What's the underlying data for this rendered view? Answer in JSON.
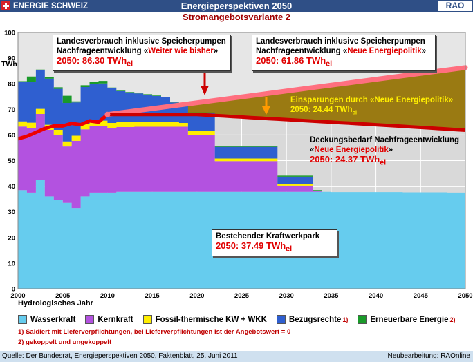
{
  "header": {
    "brand": "ENERGIE SCHWEIZ",
    "title": "Energieperspektiven 2050",
    "badge": "RAO",
    "subtitle": "Stromangebotsvariante 2"
  },
  "annotations": {
    "box_left_l1": "Landesverbrauch inklusive Speicherpumpen",
    "box_left_l2a": "Nachfrageentwicklung «",
    "box_left_l2b": "Weiter wie bisher",
    "box_left_l2c": "»",
    "box_left_value": "2050: 86.30 TWh",
    "box_right_l1": "Landesverbrauch inklusive Speicherpumpen",
    "box_right_l2a": "Nachfrageentwicklung «",
    "box_right_l2b": "Neue Energiepolitik",
    "box_right_l2c": "»",
    "box_right_value": "2050: 61.86 TWh",
    "savings_l1": "Einsparungen durch «Neue Energiepolitik»",
    "savings_l2": "2050: 24.44 TWh",
    "deck_l1": "Deckungsbedarf  Nachfrageentwicklung",
    "deck_l2a": "«",
    "deck_l2b": "Neue Energiepolitik",
    "deck_l2c": "»",
    "deck_value": "2050: 24.37 TWh",
    "park_l1": "Bestehender Kraftwerkpark",
    "park_value": "2050: 37.49 TWh",
    "unit_sub": "el"
  },
  "legend": {
    "hydro_label": "Hydrologisches Jahr",
    "items": [
      {
        "label": "Wasserkraft",
        "color": "#66ccee",
        "sup": ""
      },
      {
        "label": "Kernkraft",
        "color": "#b352e0",
        "sup": ""
      },
      {
        "label": "Fossil-thermische KW + WKK",
        "color": "#ffee00",
        "sup": ""
      },
      {
        "label": "Bezugsrechte",
        "color": "#2f5fd0",
        "sup": "1)"
      },
      {
        "label": "Erneuerbare Energie",
        "color": "#1a9a2a",
        "sup": "2)"
      }
    ],
    "note1": "1) Saldiert mit Lieferverpflichtungen, bei Lieferverpflichtungen ist der Angebotswert = 0",
    "note2": "2) gekoppelt und ungekoppelt"
  },
  "footer": {
    "source": "Quelle: Der Bundesrat, Energieperspektiven 2050, Faktenblatt, 25. Juni 2011",
    "credit": "Neubearbeitung: RAOnline"
  },
  "chart_data": {
    "type": "area",
    "ylabel": "TWh",
    "ylim": [
      0,
      100
    ],
    "xlim": [
      2000,
      2050
    ],
    "yticks": [
      0,
      10,
      20,
      30,
      40,
      50,
      60,
      70,
      80,
      90,
      100
    ],
    "xticks": [
      2000,
      2005,
      2010,
      2015,
      2020,
      2025,
      2030,
      2035,
      2040,
      2045,
      2050
    ],
    "grid": true,
    "years": [
      2000,
      2001,
      2002,
      2003,
      2004,
      2005,
      2006,
      2007,
      2008,
      2009,
      2010,
      2011,
      2012,
      2013,
      2014,
      2015,
      2016,
      2017,
      2018,
      2019,
      2020,
      2021,
      2022,
      2023,
      2024,
      2025,
      2026,
      2027,
      2028,
      2029,
      2030,
      2031,
      2032,
      2033,
      2034,
      2035,
      2036,
      2037,
      2038,
      2039,
      2040,
      2041,
      2042,
      2043,
      2044,
      2045,
      2046,
      2047,
      2048,
      2049,
      2050
    ],
    "series": [
      {
        "name": "Wasserkraft",
        "color": "#66ccee",
        "values": [
          38.5,
          37.5,
          42.5,
          36.0,
          34.5,
          33.5,
          31.5,
          36.0,
          37.5,
          37.5,
          37.5,
          37.8,
          37.8,
          37.8,
          37.8,
          37.8,
          37.8,
          37.8,
          37.8,
          37.8,
          37.8,
          37.8,
          37.8,
          37.8,
          37.8,
          37.8,
          37.8,
          37.8,
          37.8,
          37.8,
          37.8,
          37.8,
          37.8,
          37.8,
          37.8,
          37.7,
          37.7,
          37.7,
          37.7,
          37.7,
          37.7,
          37.7,
          37.7,
          37.6,
          37.6,
          37.6,
          37.6,
          37.6,
          37.5,
          37.5,
          37.49
        ]
      },
      {
        "name": "Kernkraft",
        "color": "#b352e0",
        "values": [
          24.8,
          25.3,
          25.7,
          26.0,
          25.5,
          22.0,
          26.2,
          26.2,
          26.0,
          26.1,
          25.2,
          25.3,
          25.3,
          25.4,
          25.4,
          25.4,
          25.4,
          25.4,
          25.4,
          22.2,
          22.2,
          22.2,
          12.0,
          12.0,
          12.0,
          12.0,
          12.0,
          12.0,
          12.0,
          2.4,
          2.4,
          2.4,
          2.4,
          0.3,
          0,
          0,
          0,
          0,
          0,
          0,
          0,
          0,
          0,
          0,
          0,
          0,
          0,
          0,
          0,
          0,
          0
        ]
      },
      {
        "name": "Fossil-thermische KW + WKK",
        "color": "#ffee00",
        "values": [
          2.0,
          2.0,
          2.0,
          2.0,
          2.0,
          2.0,
          2.0,
          2.0,
          2.0,
          2.0,
          2.0,
          2.0,
          2.0,
          2.0,
          2.0,
          2.0,
          2.0,
          2.0,
          1.5,
          1.5,
          1.5,
          1.5,
          1.0,
          1.0,
          1.0,
          1.0,
          1.0,
          1.0,
          1.0,
          0.5,
          0.5,
          0.5,
          0.5,
          0,
          0,
          0,
          0,
          0,
          0,
          0,
          0,
          0,
          0,
          0,
          0,
          0,
          0,
          0,
          0,
          0,
          0
        ]
      },
      {
        "name": "Bezugsrechte",
        "color": "#2f5fd0",
        "values": [
          15.5,
          16.0,
          15.0,
          18.0,
          16.0,
          15.0,
          13.0,
          14.5,
          14.5,
          14.5,
          13.5,
          12.0,
          11.5,
          11.0,
          10.5,
          10.0,
          9.5,
          7.5,
          7.0,
          7.0,
          7.0,
          7.0,
          4.5,
          4.5,
          4.5,
          4.5,
          4.5,
          4.5,
          4.5,
          3.0,
          3.0,
          3.0,
          3.0,
          0,
          0,
          0,
          0,
          0,
          0,
          0,
          0,
          0,
          0,
          0,
          0,
          0,
          0,
          0,
          0,
          0,
          0
        ]
      },
      {
        "name": "Erneuerbare Energie",
        "color": "#1a9a2a",
        "values": [
          0.2,
          2.0,
          0.3,
          0.6,
          0.6,
          2.8,
          0.4,
          0.7,
          0.6,
          1.0,
          0.3,
          0.2,
          0.2,
          0.2,
          0.2,
          0.2,
          0.2,
          0.2,
          0.3,
          0.3,
          0.3,
          0.3,
          0.4,
          0.4,
          0.4,
          0.4,
          0.4,
          0.4,
          0.4,
          0.4,
          0.4,
          0.4,
          0.4,
          0.4,
          0,
          0,
          0,
          0,
          0,
          0,
          0,
          0,
          0,
          0,
          0,
          0,
          0,
          0,
          0,
          0,
          0
        ]
      }
    ],
    "consumption_historic": {
      "x": [
        2000,
        2001,
        2002,
        2003,
        2004,
        2005,
        2006,
        2007,
        2008,
        2009,
        2010
      ],
      "y": [
        58.5,
        59.5,
        61.0,
        62.5,
        63.5,
        63.5,
        64.5,
        64.0,
        65.5,
        65.0,
        68.0
      ]
    },
    "consumption_weiter_wie_bisher": {
      "x": [
        2010,
        2050
      ],
      "y": [
        68.0,
        86.3
      ]
    },
    "consumption_neue_energiepolitik": {
      "x": [
        2010,
        2020,
        2030,
        2040,
        2050
      ],
      "y": [
        68.0,
        68.0,
        66.0,
        64.0,
        61.86
      ]
    }
  }
}
